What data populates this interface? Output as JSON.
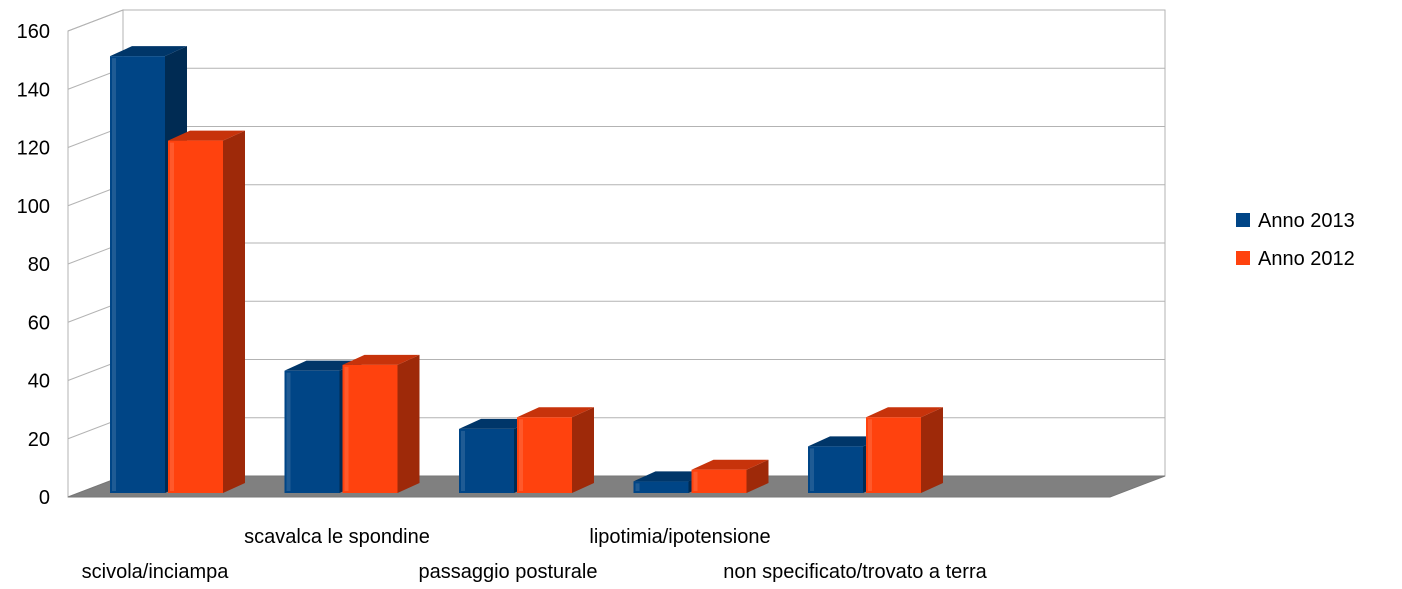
{
  "chart_data": {
    "type": "bar",
    "style": "3d-clustered-column",
    "title": "",
    "xlabel": "",
    "ylabel": "",
    "categories": [
      "scivola/inciampa",
      "scavalca le spondine",
      "passaggio posturale",
      "lipotimia/ipotensione",
      "non specificato/trovato a terra"
    ],
    "series": [
      {
        "name": "Anno 2013",
        "color": "#004586",
        "values": [
          150,
          42,
          22,
          4,
          16
        ]
      },
      {
        "name": "Anno 2012",
        "color": "#ff420e",
        "values": [
          121,
          44,
          26,
          8,
          26
        ]
      }
    ],
    "ylim": [
      0,
      160
    ],
    "yticks": [
      0,
      20,
      40,
      60,
      80,
      100,
      120,
      140,
      160
    ],
    "grid": true,
    "legend": "right",
    "floor_color": "#808080"
  }
}
